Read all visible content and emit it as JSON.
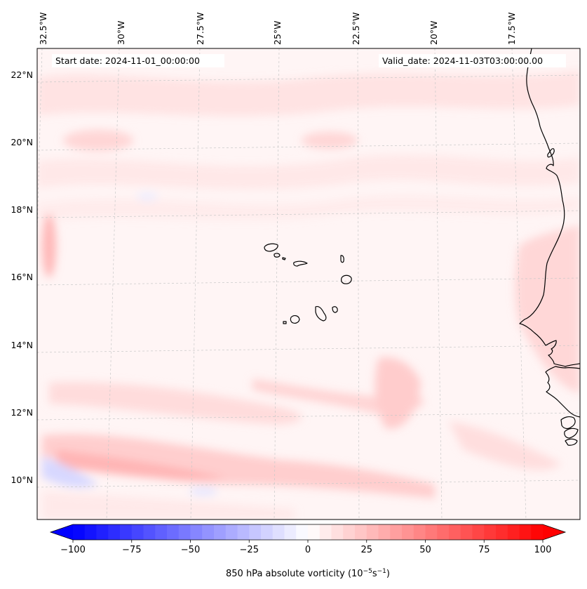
{
  "header": {
    "start_date": "Start date: 2024-11-01_00:00:00",
    "valid_date": "Valid_date: 2024-11-03T03:00:00.00"
  },
  "map": {
    "lon_labels": [
      "32.5°W",
      "30°W",
      "27.5°W",
      "25°W",
      "22.5°W",
      "20°W",
      "17.5°W"
    ],
    "lat_labels": [
      "22°N",
      "20°N",
      "18°N",
      "16°N",
      "14°N",
      "12°N",
      "10°N"
    ],
    "gridlines": true,
    "field": "850 hPa absolute vorticity",
    "islands": "Cape Verde",
    "coastline": "West Africa"
  },
  "colorbar": {
    "label_html": "850 hPa absolute vorticity (10<tspan dy='-5' font-size='9'>−5</tspan><tspan dy='5'>s</tspan><tspan dy='-5' font-size='9'>−1</tspan><tspan dy='5'>)</tspan>",
    "ticks": [
      "−100",
      "−75",
      "−50",
      "−25",
      "0",
      "25",
      "50",
      "75",
      "100"
    ],
    "tick_values": [
      -100,
      -75,
      -50,
      -25,
      0,
      25,
      50,
      75,
      100
    ],
    "range": [
      -100,
      100
    ],
    "colormap": "bwr",
    "colors": {
      "min": "#0000ff",
      "mid": "#ffffff",
      "max": "#ff0000"
    }
  }
}
